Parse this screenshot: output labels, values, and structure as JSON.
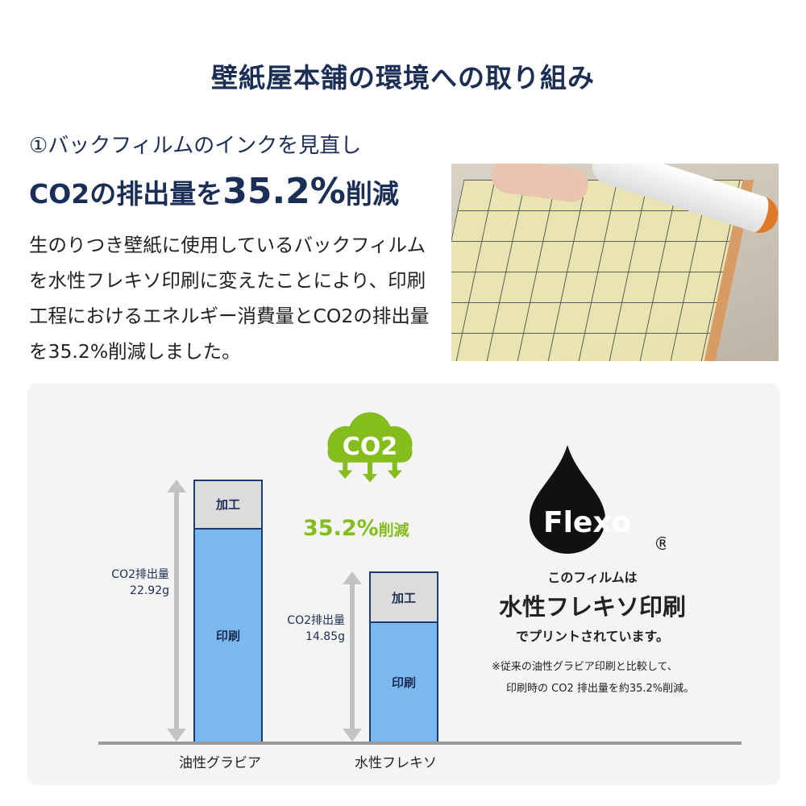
{
  "title": "壁紙屋本舗の環境への取り組み",
  "section": {
    "subtitle": "①バックフィルムのインクを見直し",
    "headline_prefix": "CO2の排出量を",
    "headline_value": "35.2%",
    "headline_suffix": "削減",
    "body": "生のりつき壁紙に使用しているバックフィルムを水性フレキソ印刷に変えたことにより、印刷工程におけるエネルギー消費量とCO2の排出量を35.2%削減しました。"
  },
  "photo": {
    "description_icon": "wallpaper-backfilm-photo"
  },
  "infographic": {
    "cloud_label": "CO2",
    "reduction_value": "35.2%",
    "reduction_suffix": "削減",
    "logo_text": "Flexo",
    "registered_mark": "®",
    "film_line1": "このフィルムは",
    "film_line2": "水性フレキソ印刷",
    "film_line3": "でプリントされています。",
    "note_line1": "※従来の油性グラビア印刷と比較して、",
    "note_line2": "印刷時の CO2 排出量を約35.2%削減。",
    "colors": {
      "navy": "#1b2e55",
      "green": "#86bd1e",
      "print_bar": "#7cb8f0",
      "process_bar": "#dcdcdc"
    }
  },
  "chart_data": {
    "type": "bar",
    "stacked": true,
    "categories": [
      "油性グラビア",
      "水性フレキソ"
    ],
    "series": [
      {
        "name": "印刷",
        "values": [
          18.7,
          10.5
        ]
      },
      {
        "name": "加工",
        "values": [
          4.22,
          4.35
        ]
      }
    ],
    "totals": [
      22.92,
      14.85
    ],
    "total_labels": [
      {
        "label": "CO2排出量",
        "value": "22.92g"
      },
      {
        "label": "CO2排出量",
        "value": "14.85g"
      }
    ],
    "unit": "g",
    "ylim": [
      0,
      22.92
    ],
    "grid": false,
    "legend": "none"
  }
}
